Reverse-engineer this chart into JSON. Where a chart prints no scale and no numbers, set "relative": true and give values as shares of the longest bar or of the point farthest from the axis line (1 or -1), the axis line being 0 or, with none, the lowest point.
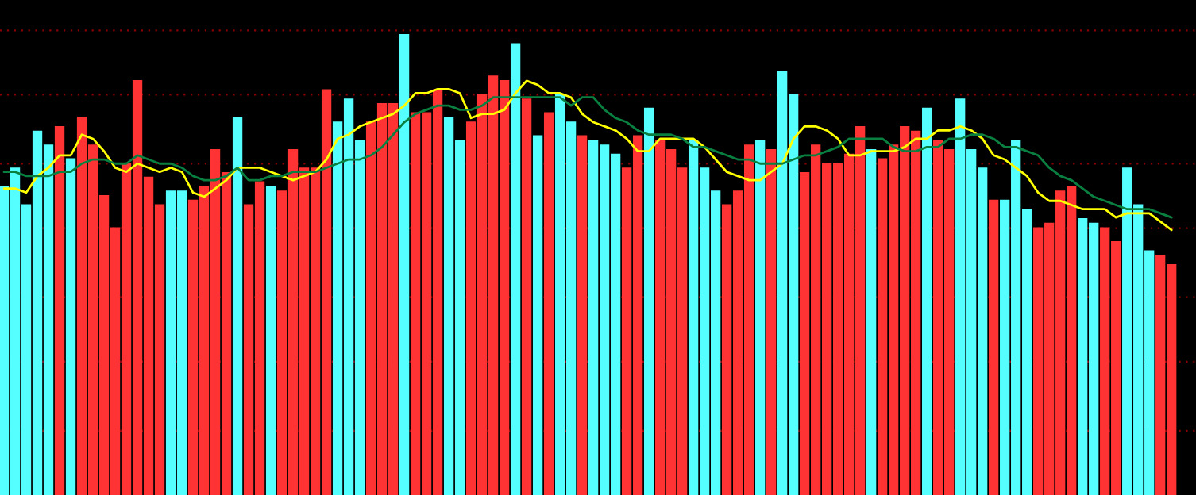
{
  "chart_data": [
    {
      "type": "bar",
      "relative": true,
      "ref_lines": [
        {
          "axis": "y",
          "value": 0.14,
          "color": "#8b0000",
          "line_style": "dotted"
        },
        {
          "axis": "y",
          "value": 0.29,
          "color": "#8b0000",
          "line_style": "dotted"
        },
        {
          "axis": "y",
          "value": 0.43,
          "color": "#8b0000",
          "line_style": "dotted"
        },
        {
          "axis": "y",
          "value": 0.58,
          "color": "#8b0000",
          "line_style": "dotted"
        },
        {
          "axis": "y",
          "value": 0.72,
          "color": "#8b0000",
          "line_style": "dotted"
        },
        {
          "axis": "y",
          "value": 0.87,
          "color": "#8b0000",
          "line_style": "dotted"
        },
        {
          "axis": "y",
          "value": 1.01,
          "color": "#8b0000",
          "line_style": "dotted"
        }
      ],
      "categories": [
        null,
        null,
        null,
        null,
        null,
        null,
        null,
        null,
        null,
        null,
        null,
        null,
        null,
        null,
        null,
        null,
        null,
        null,
        null,
        null,
        null,
        null,
        null,
        null,
        null,
        null,
        null,
        null,
        null,
        null,
        null,
        null,
        null,
        null,
        null,
        null,
        null,
        null,
        null,
        null,
        null,
        null,
        null,
        null,
        null,
        null,
        null,
        null,
        null,
        null,
        null,
        null,
        null,
        null,
        null,
        null,
        null,
        null,
        null,
        null,
        null,
        null,
        null,
        null,
        null,
        null,
        null,
        null,
        null,
        null,
        null,
        null,
        null,
        null,
        null,
        null,
        null,
        null,
        null,
        null,
        null,
        null,
        null,
        null,
        null,
        null,
        null,
        null,
        null,
        null,
        null,
        null,
        null,
        null,
        null,
        null,
        null,
        null,
        null,
        null,
        null,
        null,
        null,
        null,
        null,
        null
      ],
      "values": [
        0.67,
        0.71,
        0.63,
        0.79,
        0.76,
        0.8,
        0.73,
        0.82,
        0.76,
        0.65,
        0.58,
        0.72,
        0.9,
        0.69,
        0.63,
        0.66,
        0.66,
        0.64,
        0.67,
        0.75,
        0.7,
        0.82,
        0.63,
        0.68,
        0.67,
        0.66,
        0.75,
        0.71,
        0.71,
        0.88,
        0.81,
        0.86,
        0.77,
        0.81,
        0.85,
        0.85,
        1,
        0.83,
        0.83,
        0.88,
        0.82,
        0.77,
        0.81,
        0.87,
        0.91,
        0.9,
        0.98,
        0.86,
        0.78,
        0.83,
        0.87,
        0.81,
        0.78,
        0.77,
        0.76,
        0.74,
        0.71,
        0.78,
        0.84,
        0.77,
        0.75,
        0.71,
        0.77,
        0.71,
        0.66,
        0.63,
        0.66,
        0.76,
        0.77,
        0.75,
        0.92,
        0.87,
        0.7,
        0.76,
        0.72,
        0.72,
        0.74,
        0.8,
        0.75,
        0.73,
        0.76,
        0.8,
        0.79,
        0.84,
        0.77,
        0.75,
        0.86,
        0.75,
        0.71,
        0.64,
        0.64,
        0.77,
        0.62,
        0.58,
        0.59,
        0.66,
        0.67,
        0.6,
        0.59,
        0.58,
        0.55,
        0.71,
        0.63,
        0.53,
        0.52,
        0.5
      ],
      "colors": [
        "#55ffff",
        "#55ffff",
        "#55ffff",
        "#55ffff",
        "#55ffff",
        "#ff3333",
        "#55ffff",
        "#ff3333",
        "#ff3333",
        "#ff3333",
        "#ff3333",
        "#ff3333",
        "#ff3333",
        "#ff3333",
        "#ff3333",
        "#55ffff",
        "#55ffff",
        "#ff3333",
        "#ff3333",
        "#ff3333",
        "#ff3333",
        "#55ffff",
        "#ff3333",
        "#ff3333",
        "#55ffff",
        "#ff3333",
        "#ff3333",
        "#ff3333",
        "#ff3333",
        "#ff3333",
        "#55ffff",
        "#55ffff",
        "#55ffff",
        "#ff3333",
        "#ff3333",
        "#ff3333",
        "#55ffff",
        "#ff3333",
        "#ff3333",
        "#ff3333",
        "#55ffff",
        "#55ffff",
        "#ff3333",
        "#ff3333",
        "#ff3333",
        "#ff3333",
        "#55ffff",
        "#ff3333",
        "#55ffff",
        "#ff3333",
        "#55ffff",
        "#55ffff",
        "#ff3333",
        "#55ffff",
        "#55ffff",
        "#55ffff",
        "#ff3333",
        "#ff3333",
        "#55ffff",
        "#ff3333",
        "#ff3333",
        "#ff3333",
        "#55ffff",
        "#55ffff",
        "#55ffff",
        "#ff3333",
        "#ff3333",
        "#ff3333",
        "#55ffff",
        "#ff3333",
        "#55ffff",
        "#55ffff",
        "#ff3333",
        "#ff3333",
        "#ff3333",
        "#ff3333",
        "#ff3333",
        "#ff3333",
        "#55ffff",
        "#ff3333",
        "#ff3333",
        "#ff3333",
        "#ff3333",
        "#55ffff",
        "#ff3333",
        "#ff3333",
        "#55ffff",
        "#55ffff",
        "#55ffff",
        "#ff3333",
        "#55ffff",
        "#55ffff",
        "#55ffff",
        "#ff3333",
        "#ff3333",
        "#ff3333",
        "#ff3333",
        "#55ffff",
        "#55ffff",
        "#ff3333",
        "#ff3333",
        "#55ffff",
        "#55ffff",
        "#55ffff",
        "#ff3333",
        "#ff3333"
      ]
    },
    {
      "type": "line",
      "relative": true,
      "categories": [
        null,
        null,
        null,
        null,
        null,
        null,
        null,
        null,
        null,
        null,
        null,
        null,
        null,
        null,
        null,
        null,
        null,
        null,
        null,
        null,
        null,
        null,
        null,
        null,
        null,
        null,
        null,
        null,
        null,
        null,
        null,
        null,
        null,
        null,
        null,
        null,
        null,
        null,
        null,
        null,
        null,
        null,
        null,
        null,
        null,
        null,
        null,
        null,
        null,
        null,
        null,
        null,
        null,
        null,
        null,
        null,
        null,
        null,
        null,
        null,
        null,
        null,
        null,
        null,
        null,
        null,
        null,
        null,
        null,
        null,
        null,
        null,
        null,
        null,
        null,
        null,
        null,
        null,
        null,
        null,
        null,
        null,
        null,
        null,
        null,
        null,
        null,
        null,
        null,
        null,
        null,
        null,
        null,
        null,
        null,
        null,
        null,
        null,
        null,
        null,
        null,
        null,
        null,
        null,
        null,
        null
      ],
      "series": [
        {
          "color": "#ffff00",
          "values": [
            0.74,
            0.74,
            0.73,
            0.77,
            0.79,
            0.82,
            0.82,
            0.87,
            0.86,
            0.83,
            0.79,
            0.78,
            0.8,
            0.79,
            0.78,
            0.79,
            0.78,
            0.73,
            0.72,
            0.74,
            0.76,
            0.79,
            0.79,
            0.79,
            0.78,
            0.77,
            0.76,
            0.77,
            0.78,
            0.81,
            0.86,
            0.87,
            0.89,
            0.9,
            0.91,
            0.92,
            0.94,
            0.97,
            0.97,
            0.98,
            0.98,
            0.97,
            0.91,
            0.92,
            0.92,
            0.93,
            0.97,
            1,
            0.99,
            0.97,
            0.97,
            0.96,
            0.92,
            0.9,
            0.89,
            0.88,
            0.86,
            0.83,
            0.83,
            0.86,
            0.86,
            0.86,
            0.86,
            0.84,
            0.81,
            0.78,
            0.77,
            0.76,
            0.76,
            0.78,
            0.8,
            0.86,
            0.89,
            0.89,
            0.88,
            0.86,
            0.82,
            0.82,
            0.83,
            0.83,
            0.83,
            0.84,
            0.86,
            0.86,
            0.88,
            0.88,
            0.89,
            0.88,
            0.86,
            0.82,
            0.81,
            0.79,
            0.77,
            0.73,
            0.71,
            0.71,
            0.7,
            0.69,
            0.69,
            0.69,
            0.67,
            0.68,
            0.68,
            0.68,
            0.66,
            0.64
          ]
        },
        {
          "color": "#0a8040",
          "values": [
            0.78,
            0.78,
            0.77,
            0.77,
            0.77,
            0.78,
            0.78,
            0.8,
            0.81,
            0.81,
            0.8,
            0.8,
            0.82,
            0.81,
            0.8,
            0.8,
            0.79,
            0.77,
            0.76,
            0.76,
            0.77,
            0.79,
            0.76,
            0.76,
            0.77,
            0.77,
            0.78,
            0.78,
            0.78,
            0.79,
            0.8,
            0.81,
            0.81,
            0.82,
            0.84,
            0.87,
            0.9,
            0.92,
            0.93,
            0.94,
            0.94,
            0.93,
            0.93,
            0.94,
            0.96,
            0.96,
            0.96,
            0.96,
            0.96,
            0.96,
            0.96,
            0.94,
            0.96,
            0.96,
            0.93,
            0.91,
            0.9,
            0.88,
            0.87,
            0.87,
            0.87,
            0.86,
            0.84,
            0.84,
            0.83,
            0.82,
            0.81,
            0.81,
            0.8,
            0.8,
            0.8,
            0.81,
            0.82,
            0.82,
            0.83,
            0.84,
            0.86,
            0.86,
            0.86,
            0.86,
            0.84,
            0.83,
            0.83,
            0.84,
            0.84,
            0.86,
            0.86,
            0.87,
            0.87,
            0.86,
            0.84,
            0.84,
            0.83,
            0.82,
            0.79,
            0.77,
            0.76,
            0.74,
            0.72,
            0.71,
            0.7,
            0.69,
            0.69,
            0.69,
            0.68,
            0.67
          ]
        }
      ]
    }
  ]
}
